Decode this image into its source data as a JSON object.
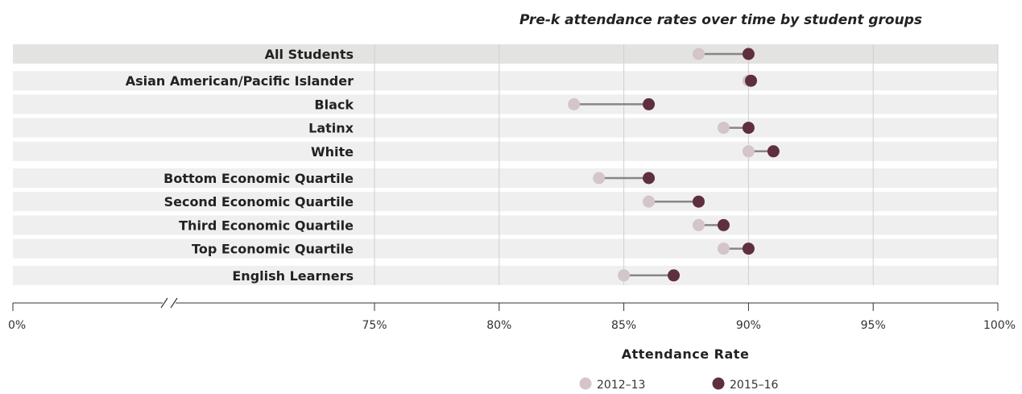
{
  "chart_data": {
    "type": "dumbbell",
    "title": "Pre-k attendance rates over time by student groups",
    "xlabel": "Attendance Rate",
    "ylabel": "",
    "xlim": [
      75,
      100
    ],
    "axis_break": true,
    "grid": true,
    "legend_position": "bottom",
    "x_ticks": [
      {
        "label": "0%",
        "value": 0
      },
      {
        "label": "75%",
        "value": 75
      },
      {
        "label": "80%",
        "value": 80
      },
      {
        "label": "85%",
        "value": 85
      },
      {
        "label": "90%",
        "value": 90
      },
      {
        "label": "95%",
        "value": 95
      },
      {
        "label": "100%",
        "value": 100
      }
    ],
    "categories": [
      "All Students",
      "Asian American/Pacific Islander",
      "Black",
      "Latinx",
      "White",
      "Bottom Economic Quartile",
      "Second Economic Quartile",
      "Third Economic Quartile",
      "Top Economic Quartile",
      "English Learners"
    ],
    "groups": [
      1,
      2,
      2,
      2,
      2,
      3,
      3,
      3,
      3,
      4
    ],
    "series": [
      {
        "name": "2012–13",
        "color": "#d3c5c8",
        "values": [
          88,
          90,
          83,
          89,
          90,
          84,
          86,
          88,
          89,
          85
        ]
      },
      {
        "name": "2015–16",
        "color": "#5e2f3e",
        "values": [
          90,
          90.1,
          86,
          90,
          91,
          86,
          88,
          89,
          90,
          87
        ]
      }
    ],
    "colors": {
      "row_highlight": "#e3e3e1",
      "row": "#efefef",
      "gridline": "#cfcfcf",
      "connector": "#8a8485",
      "axis": "#333333"
    }
  }
}
